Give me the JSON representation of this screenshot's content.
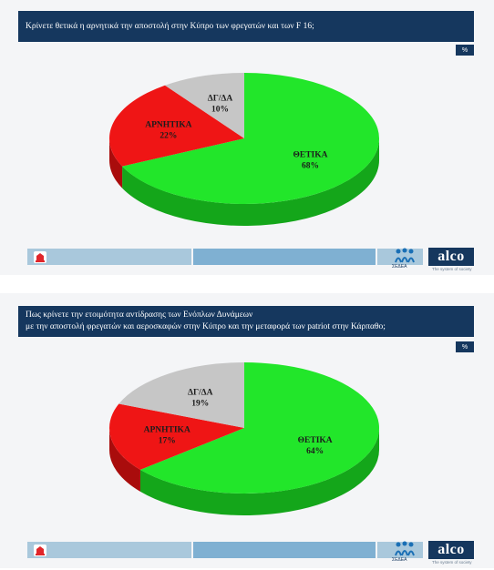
{
  "slides": [
    {
      "title_lines": [
        "Κρίνετε θετικά η αρνητικά την αποστολή στην Κύπρο των  φρεγατών και των F 16;"
      ],
      "unit": "%"
    },
    {
      "title_lines": [
        "Πως κρίνετε την ετοιμότητα αντίδρασης των Ενόπλων Δυνάμεων",
        "με την αποστολή φρεγατών και αεροσκαφών στην Κύπρο και την μεταφορά των patriot στην Κάρπαθο;"
      ],
      "unit": "%"
    }
  ],
  "footer": {
    "sedea_label": "ΣΕΔΕΑ",
    "brand": "alco",
    "tagline": "The system of society"
  },
  "colors": {
    "positive": "#22e62a",
    "negative": "#ef1515",
    "neutral": "#c6c6c6"
  },
  "chart_data": [
    {
      "type": "pie",
      "title": "Κρίνετε θετικά η αρνητικά την αποστολή στην Κύπρο των  φρεγατών και των F 16;",
      "categories": [
        "ΘΕΤΙΚΑ",
        "ΑΡΝΗΤΙΚΑ",
        "ΔΓ/ΔΑ"
      ],
      "values": [
        68,
        22,
        10
      ],
      "value_labels": [
        "68%",
        "22%",
        "10%"
      ]
    },
    {
      "type": "pie",
      "title": "Πως κρίνετε την ετοιμότητα αντίδρασης των Ενόπλων Δυνάμεων με την αποστολή φρεγατών και αεροσκαφών στην Κύπρο και την μεταφορά των patriot στην Κάρπαθο;",
      "categories": [
        "ΘΕΤΙΚΑ",
        "ΑΡΝΗΤΙΚΑ",
        "ΔΓ/ΔΑ"
      ],
      "values": [
        64,
        17,
        19
      ],
      "value_labels": [
        "64%",
        "17%",
        "19%"
      ]
    }
  ]
}
